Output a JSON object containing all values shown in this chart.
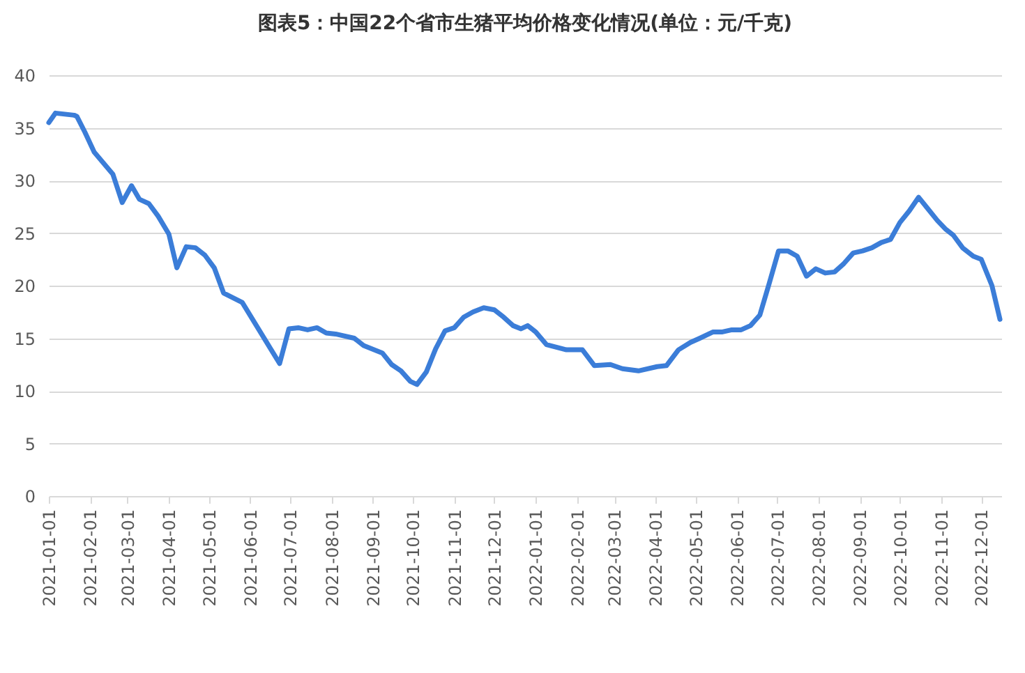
{
  "chart_data": {
    "type": "line",
    "title": "图表5：中国22个省市生猪平均价格变化情况(单位：元/千克)",
    "x": [
      "2021-01-01",
      "2021-01-06",
      "2021-01-20",
      "2021-01-22",
      "2021-01-28",
      "2021-02-04",
      "2021-02-18",
      "2021-02-25",
      "2021-03-04",
      "2021-03-10",
      "2021-03-17",
      "2021-03-24",
      "2021-04-01",
      "2021-04-07",
      "2021-04-14",
      "2021-04-21",
      "2021-04-28",
      "2021-05-05",
      "2021-05-12",
      "2021-05-26",
      "2021-06-23",
      "2021-06-30",
      "2021-07-07",
      "2021-07-14",
      "2021-07-21",
      "2021-07-28",
      "2021-08-04",
      "2021-08-18",
      "2021-08-25",
      "2021-09-08",
      "2021-09-15",
      "2021-09-22",
      "2021-09-29",
      "2021-10-04",
      "2021-10-11",
      "2021-10-18",
      "2021-10-25",
      "2021-11-01",
      "2021-11-08",
      "2021-11-15",
      "2021-11-23",
      "2021-12-01",
      "2021-12-08",
      "2021-12-15",
      "2021-12-21",
      "2021-12-26",
      "2022-01-01",
      "2022-01-09",
      "2022-01-15",
      "2022-01-24",
      "2022-02-05",
      "2022-02-14",
      "2022-02-26",
      "2022-03-07",
      "2022-03-19",
      "2022-04-02",
      "2022-04-09",
      "2022-04-18",
      "2022-04-27",
      "2022-05-04",
      "2022-05-14",
      "2022-05-21",
      "2022-05-28",
      "2022-06-04",
      "2022-06-11",
      "2022-06-18",
      "2022-06-25",
      "2022-07-02",
      "2022-07-09",
      "2022-07-16",
      "2022-07-23",
      "2022-07-30",
      "2022-08-06",
      "2022-08-13",
      "2022-08-20",
      "2022-08-27",
      "2022-09-03",
      "2022-09-10",
      "2022-09-17",
      "2022-09-24",
      "2022-10-01",
      "2022-10-08",
      "2022-10-15",
      "2022-10-22",
      "2022-10-29",
      "2022-11-04",
      "2022-11-10",
      "2022-11-17",
      "2022-11-25",
      "2022-12-01",
      "2022-12-09",
      "2022-12-15"
    ],
    "series": [
      {
        "color": "#3b7dd8",
        "values": [
          35.5,
          36.4,
          36.2,
          36.1,
          34.6,
          32.7,
          30.6,
          27.9,
          29.5,
          28.2,
          27.8,
          26.6,
          24.9,
          21.7,
          23.7,
          23.6,
          22.9,
          21.7,
          19.3,
          18.4,
          12.6,
          15.9,
          16.0,
          15.8,
          16.0,
          15.5,
          15.4,
          15.0,
          14.3,
          13.6,
          12.5,
          11.9,
          10.9,
          10.6,
          11.8,
          14.0,
          15.7,
          16.0,
          17.0,
          17.5,
          17.9,
          17.7,
          17.0,
          16.2,
          15.9,
          16.2,
          15.6,
          14.4,
          14.2,
          13.9,
          13.9,
          12.4,
          12.5,
          12.1,
          11.9,
          12.3,
          12.4,
          13.9,
          14.6,
          15.0,
          15.6,
          15.6,
          15.8,
          15.8,
          16.2,
          17.2,
          20.2,
          23.3,
          23.3,
          22.8,
          20.9,
          21.6,
          21.2,
          21.3,
          22.1,
          23.1,
          23.3,
          23.6,
          24.1,
          24.4,
          26.0,
          27.1,
          28.4,
          27.3,
          26.2,
          25.4,
          24.8,
          23.6,
          22.8,
          22.5,
          20.0,
          16.8
        ]
      }
    ],
    "xlim": [
      "2021-01-01",
      "2022-12-16"
    ],
    "xticks": [
      "2021-01-01",
      "2021-02-01",
      "2021-03-01",
      "2021-04-01",
      "2021-05-01",
      "2021-06-01",
      "2021-07-01",
      "2021-08-01",
      "2021-09-01",
      "2021-10-01",
      "2021-11-01",
      "2021-12-01",
      "2022-01-01",
      "2022-02-01",
      "2022-03-01",
      "2022-04-01",
      "2022-05-01",
      "2022-06-01",
      "2022-07-01",
      "2022-08-01",
      "2022-09-01",
      "2022-10-01",
      "2022-11-01",
      "2022-12-01"
    ],
    "ylim": [
      0,
      40
    ],
    "yticks": [
      0,
      5,
      10,
      15,
      20,
      25,
      30,
      35,
      40
    ],
    "grid": "y",
    "marker": "none",
    "line_style": "solid"
  }
}
